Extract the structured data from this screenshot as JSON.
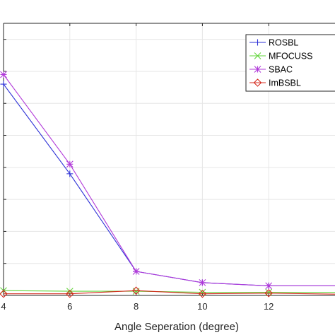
{
  "chart_data": {
    "type": "line",
    "xlabel": "Angle Seperation (degree)",
    "ylabel": "",
    "title": "",
    "xlim": [
      4,
      14
    ],
    "ylim": [
      0,
      0.85
    ],
    "x_ticks": [
      4,
      6,
      8,
      10,
      12
    ],
    "x_tick_labels": [
      "4",
      "6",
      "8",
      "10",
      "12"
    ],
    "y_ticks": [
      0.1,
      0.2,
      0.3,
      0.4,
      0.5,
      0.6,
      0.7,
      0.8
    ],
    "y_tick_labels": [
      "",
      "",
      "",
      "",
      "",
      "",
      "",
      ""
    ],
    "grid": true,
    "legend_position": "top-right",
    "series": [
      {
        "name": "ROSBL",
        "color": "#2b2fd6",
        "marker": "plus",
        "x": [
          4,
          6,
          8,
          10,
          12,
          14
        ],
        "y": [
          0.66,
          0.38,
          0.075,
          0.04,
          0.03,
          0.03
        ]
      },
      {
        "name": "MFOCUSS",
        "color": "#62d43a",
        "marker": "x",
        "x": [
          4,
          6,
          8,
          10,
          12,
          14
        ],
        "y": [
          0.015,
          0.013,
          0.013,
          0.01,
          0.01,
          0.01
        ]
      },
      {
        "name": "SBAC",
        "color": "#b13ad9",
        "marker": "star",
        "x": [
          4,
          6,
          8,
          10,
          12,
          14
        ],
        "y": [
          0.69,
          0.41,
          0.075,
          0.04,
          0.03,
          0.03
        ]
      },
      {
        "name": "ImBSBL",
        "color": "#d42a1e",
        "marker": "diamond",
        "x": [
          4,
          6,
          8,
          10,
          12,
          14
        ],
        "y": [
          0.005,
          0.005,
          0.015,
          0.005,
          0.007,
          0.004
        ]
      }
    ]
  }
}
